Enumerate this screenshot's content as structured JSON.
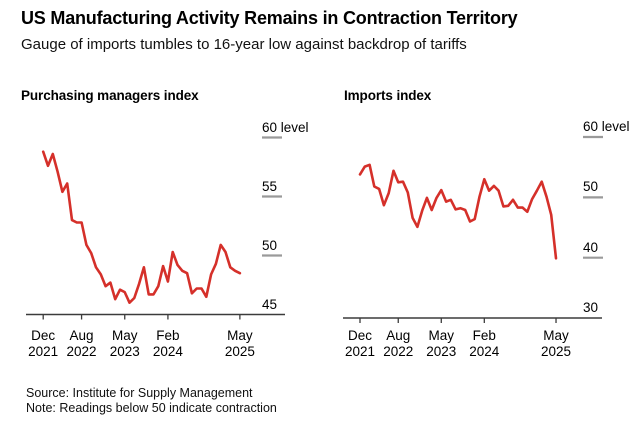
{
  "header": {
    "title": "US Manufacturing Activity Remains in Contraction Territory",
    "subtitle": "Gauge of imports tumbles to 16-year low against backdrop of tariffs"
  },
  "footer": {
    "source": "Source: Institute for Supply Management",
    "note": "Note: Readings below 50 indicate contraction"
  },
  "colors": {
    "line": "#d5302a",
    "axis": "#3b3b3b",
    "tick_dash": "#9a9a9a",
    "text": "#000000",
    "background": "#ffffff"
  },
  "chart_data": [
    {
      "type": "line",
      "title": "Purchasing managers index",
      "x_range": {
        "start": "Dec 2021",
        "end": "May 2025",
        "frequency": "monthly"
      },
      "x_tick_labels": [
        [
          "Dec",
          "2021"
        ],
        [
          "Aug",
          "2022"
        ],
        [
          "May",
          "2023"
        ],
        [
          "Feb",
          "2024"
        ],
        [
          "May",
          "2025"
        ]
      ],
      "x_tick_month_offsets": [
        0,
        8,
        17,
        26,
        41
      ],
      "y_ticks": [
        60,
        55,
        50,
        45
      ],
      "y_tick_labels": [
        "60 level",
        "55",
        "50",
        "45"
      ],
      "ylim": [
        45,
        60
      ],
      "grid": false,
      "legend": "none",
      "values": [
        58.8,
        57.6,
        58.6,
        57.1,
        55.4,
        56.1,
        53.0,
        52.8,
        52.8,
        50.9,
        50.2,
        49.0,
        48.4,
        47.4,
        47.7,
        46.3,
        47.1,
        46.9,
        46.0,
        46.4,
        47.6,
        49.0,
        46.7,
        46.7,
        47.4,
        49.1,
        47.8,
        50.3,
        49.2,
        48.7,
        48.5,
        46.8,
        47.2,
        47.2,
        46.5,
        48.4,
        49.3,
        50.9,
        50.3,
        49.0,
        48.7,
        48.5
      ]
    },
    {
      "type": "line",
      "title": "Imports index",
      "x_range": {
        "start": "Dec 2021",
        "end": "May 2025",
        "frequency": "monthly"
      },
      "x_tick_labels": [
        [
          "Dec",
          "2021"
        ],
        [
          "Aug",
          "2022"
        ],
        [
          "May",
          "2023"
        ],
        [
          "Feb",
          "2024"
        ],
        [
          "May",
          "2025"
        ]
      ],
      "x_tick_month_offsets": [
        0,
        8,
        17,
        26,
        41
      ],
      "y_ticks": [
        60,
        50,
        40,
        30
      ],
      "y_tick_labels": [
        "60 level",
        "50",
        "40",
        "30"
      ],
      "ylim": [
        30,
        60
      ],
      "grid": false,
      "legend": "none",
      "values": [
        53.8,
        55.1,
        55.4,
        51.8,
        51.4,
        48.7,
        50.7,
        54.4,
        52.5,
        52.6,
        50.8,
        46.6,
        45.1,
        47.8,
        49.9,
        47.9,
        49.9,
        51.2,
        49.3,
        49.6,
        48.0,
        48.2,
        47.9,
        46.0,
        46.4,
        50.1,
        53.0,
        51.1,
        51.9,
        51.1,
        48.5,
        48.6,
        49.6,
        48.3,
        48.3,
        47.6,
        49.7,
        51.1,
        52.6,
        50.1,
        47.1,
        39.9
      ]
    }
  ]
}
